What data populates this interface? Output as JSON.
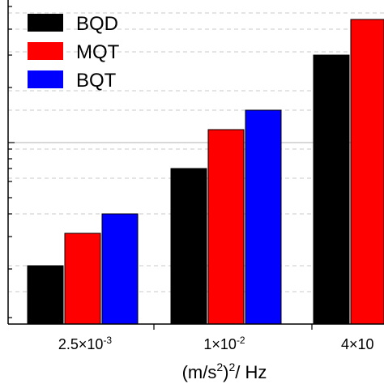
{
  "chart_data": {
    "type": "bar",
    "title": "",
    "categories": [
      {
        "base": "2.5×10",
        "exp": "-3"
      },
      {
        "base": "1×10",
        "exp": "-2"
      },
      {
        "base": "4×10",
        "exp": ""
      }
    ],
    "series": [
      {
        "name": "BQD",
        "color": "#000000",
        "values": [
          0.18,
          0.48,
          0.83
        ]
      },
      {
        "name": "MQT",
        "color": "#ff0000",
        "values": [
          0.28,
          0.6,
          0.94
        ]
      },
      {
        "name": "BQT",
        "color": "#0000ff",
        "values": [
          0.34,
          0.66,
          null
        ]
      }
    ],
    "ylim": [
      0,
      1
    ],
    "grid": "dashed horizontal",
    "legend_position": "top-left",
    "xlabel": {
      "unit_open": "(m/s",
      "sup1": "2",
      "unit_close": ")",
      "sup2": "2",
      "rest": "/ Hz"
    }
  }
}
